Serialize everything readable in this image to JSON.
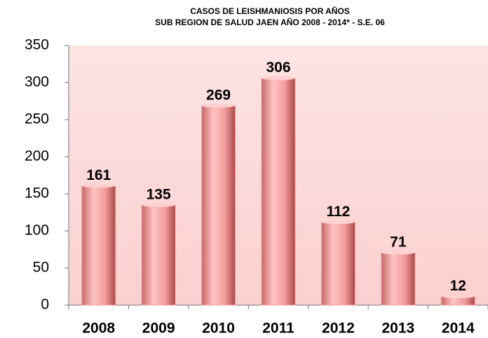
{
  "chart_data": {
    "type": "bar",
    "title": "CASOS DE LEISHMANIOSIS POR AÑOS",
    "subtitle": "SUB REGION DE SALUD JAEN   AÑO 2008 - 2014* - S.E. 06",
    "categories": [
      "2008",
      "2009",
      "2010",
      "2011",
      "2012",
      "2013",
      "2014"
    ],
    "values": [
      161,
      135,
      269,
      306,
      112,
      71,
      12
    ],
    "color": "#f4a0a0",
    "ylim": [
      0,
      350
    ],
    "yticks": [
      0,
      50,
      100,
      150,
      200,
      250,
      300,
      350
    ]
  }
}
